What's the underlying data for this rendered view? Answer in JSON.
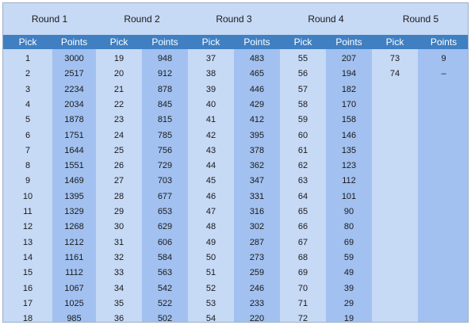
{
  "rounds": [
    {
      "label": "Round 1",
      "pick_header": "Pick",
      "points_header": "Points",
      "rows": [
        [
          "1",
          "3000"
        ],
        [
          "2",
          "2517"
        ],
        [
          "3",
          "2234"
        ],
        [
          "4",
          "2034"
        ],
        [
          "5",
          "1878"
        ],
        [
          "6",
          "1751"
        ],
        [
          "7",
          "1644"
        ],
        [
          "8",
          "1551"
        ],
        [
          "9",
          "1469"
        ],
        [
          "10",
          "1395"
        ],
        [
          "11",
          "1329"
        ],
        [
          "12",
          "1268"
        ],
        [
          "13",
          "1212"
        ],
        [
          "14",
          "1161"
        ],
        [
          "15",
          "1112"
        ],
        [
          "16",
          "1067"
        ],
        [
          "17",
          "1025"
        ],
        [
          "18",
          "985"
        ]
      ]
    },
    {
      "label": "Round 2",
      "pick_header": "Pick",
      "points_header": "Points",
      "rows": [
        [
          "19",
          "948"
        ],
        [
          "20",
          "912"
        ],
        [
          "21",
          "878"
        ],
        [
          "22",
          "845"
        ],
        [
          "23",
          "815"
        ],
        [
          "24",
          "785"
        ],
        [
          "25",
          "756"
        ],
        [
          "26",
          "729"
        ],
        [
          "27",
          "703"
        ],
        [
          "28",
          "677"
        ],
        [
          "29",
          "653"
        ],
        [
          "30",
          "629"
        ],
        [
          "31",
          "606"
        ],
        [
          "32",
          "584"
        ],
        [
          "33",
          "563"
        ],
        [
          "34",
          "542"
        ],
        [
          "35",
          "522"
        ],
        [
          "36",
          "502"
        ]
      ]
    },
    {
      "label": "Round 3",
      "pick_header": "Pick",
      "points_header": "Points",
      "rows": [
        [
          "37",
          "483"
        ],
        [
          "38",
          "465"
        ],
        [
          "39",
          "446"
        ],
        [
          "40",
          "429"
        ],
        [
          "41",
          "412"
        ],
        [
          "42",
          "395"
        ],
        [
          "43",
          "378"
        ],
        [
          "44",
          "362"
        ],
        [
          "45",
          "347"
        ],
        [
          "46",
          "331"
        ],
        [
          "47",
          "316"
        ],
        [
          "48",
          "302"
        ],
        [
          "49",
          "287"
        ],
        [
          "50",
          "273"
        ],
        [
          "51",
          "259"
        ],
        [
          "52",
          "246"
        ],
        [
          "53",
          "233"
        ],
        [
          "54",
          "220"
        ]
      ]
    },
    {
      "label": "Round 4",
      "pick_header": "Pick",
      "points_header": "Points",
      "rows": [
        [
          "55",
          "207"
        ],
        [
          "56",
          "194"
        ],
        [
          "57",
          "182"
        ],
        [
          "58",
          "170"
        ],
        [
          "59",
          "158"
        ],
        [
          "60",
          "146"
        ],
        [
          "61",
          "135"
        ],
        [
          "62",
          "123"
        ],
        [
          "63",
          "112"
        ],
        [
          "64",
          "101"
        ],
        [
          "65",
          "90"
        ],
        [
          "66",
          "80"
        ],
        [
          "67",
          "69"
        ],
        [
          "68",
          "59"
        ],
        [
          "69",
          "49"
        ],
        [
          "70",
          "39"
        ],
        [
          "71",
          "29"
        ],
        [
          "72",
          "19"
        ]
      ]
    },
    {
      "label": "Round 5",
      "pick_header": "Pick",
      "points_header": "Points",
      "rows": [
        [
          "73",
          "9"
        ],
        [
          "74",
          "–"
        ]
      ]
    }
  ]
}
